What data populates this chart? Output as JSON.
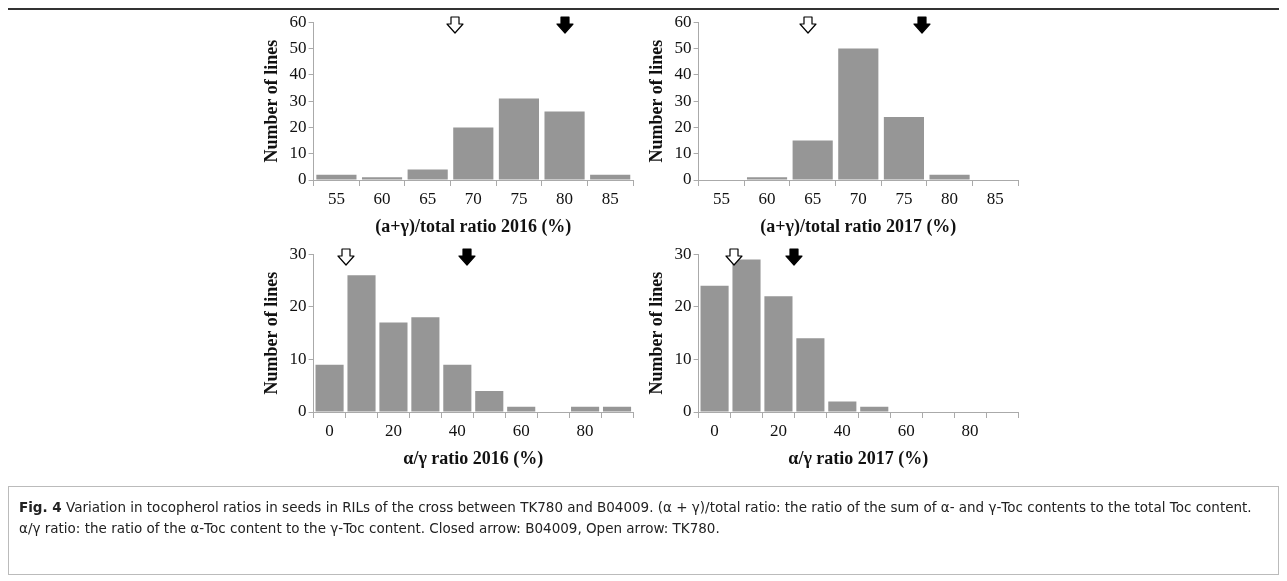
{
  "chart_data": [
    {
      "type": "bar",
      "xlabel": "(a+γ)/total ratio 2016 (%)",
      "ylabel": "Number of lines",
      "categories": [
        "55",
        "60",
        "65",
        "70",
        "75",
        "80",
        "85"
      ],
      "values": [
        2,
        1,
        4,
        20,
        31,
        26,
        2
      ],
      "color": "#969696",
      "ylim": [
        0,
        60
      ],
      "yticks": [
        0,
        10,
        20,
        30,
        40,
        50,
        60
      ],
      "grid": false
    },
    {
      "type": "bar",
      "xlabel": "(a+γ)/total ratio 2017 (%)",
      "ylabel": "Number of lines",
      "categories": [
        "55",
        "60",
        "65",
        "70",
        "75",
        "80",
        "85"
      ],
      "values": [
        0,
        1,
        15,
        50,
        24,
        2,
        0
      ],
      "color": "#969696",
      "ylim": [
        0,
        60
      ],
      "yticks": [
        0,
        10,
        20,
        30,
        40,
        50,
        60
      ],
      "grid": false
    },
    {
      "type": "bar",
      "xlabel": "α/γ ratio 2016 (%)",
      "ylabel": "Number of lines",
      "categories": [
        "0",
        null,
        "20",
        null,
        "40",
        null,
        "60",
        null,
        "80",
        null
      ],
      "values": [
        9,
        26,
        17,
        18,
        9,
        4,
        1,
        0,
        1,
        1
      ],
      "color": "#969696",
      "ylim": [
        0,
        30
      ],
      "yticks": [
        0,
        10,
        20,
        30
      ],
      "grid": false
    },
    {
      "type": "bar",
      "xlabel": "α/γ ratio 2017 (%)",
      "ylabel": "Number of lines",
      "categories": [
        "0",
        null,
        "20",
        null,
        "40",
        null,
        "60",
        null,
        "80",
        null
      ],
      "values": [
        24,
        29,
        22,
        14,
        2,
        1,
        0,
        0,
        0,
        0
      ],
      "color": "#969696",
      "ylim": [
        0,
        30
      ],
      "yticks": [
        0,
        10,
        20,
        30
      ],
      "grid": false,
      "annotations": [
        "Fig. 4 Variation in tocopherol ratios in seeds in RILs of the cross between TK780 and B04009. (α + γ)/total ratio: the ratio of the sum of α- and γ-Toc contents to the total Toc content. α/γ ratio: the ratio of the α-Toc content to the γ-Toc content. Closed arrow: B04009, Open arrow: TK780."
      ]
    }
  ]
}
